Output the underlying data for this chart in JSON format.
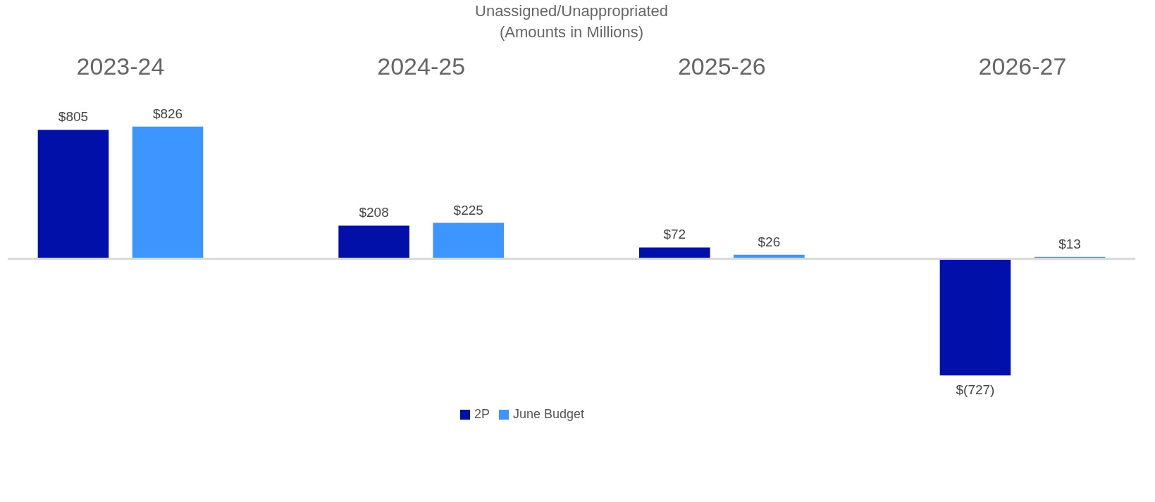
{
  "chart_data": {
    "type": "bar",
    "title": "Unassigned/Unappropriated",
    "subtitle": "(Amounts in Millions)",
    "categories": [
      "2023-24",
      "2024-25",
      "2025-26",
      "2026-27"
    ],
    "legend": "bottom",
    "grid": false,
    "series": [
      {
        "name": "2P",
        "color": "#0010a8",
        "values": [
          805,
          208,
          72,
          -727
        ],
        "value_labels": [
          "$805",
          "$208",
          "$72",
          "$(727)"
        ]
      },
      {
        "name": "June Budget",
        "color": "#3d96ff",
        "values": [
          826,
          225,
          26,
          13
        ],
        "value_labels": [
          "$826",
          "$225",
          "$26",
          "$13"
        ]
      }
    ]
  }
}
